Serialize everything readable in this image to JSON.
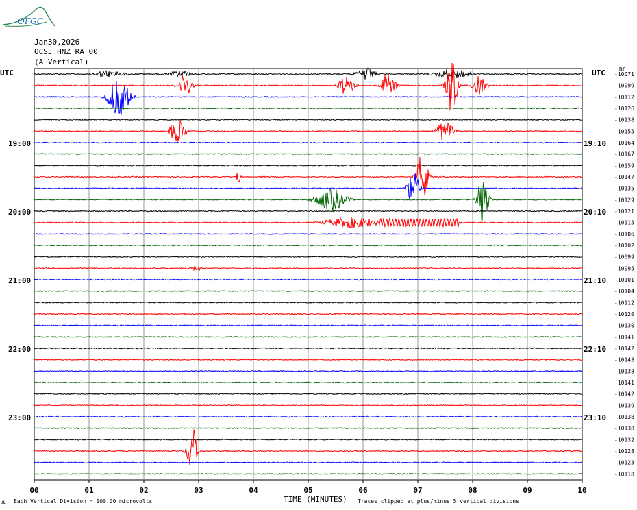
{
  "logo": {
    "text": "OFGC",
    "icon": "mountain-swoosh-logo"
  },
  "header": {
    "date": "Jan30,2026",
    "station": "OCSJ HNZ RA 00",
    "component": "(A Vertical)"
  },
  "left_axis": {
    "unit": "UTC",
    "hour_labels": [
      "19:00",
      "20:00",
      "21:00",
      "22:00",
      "23:00"
    ]
  },
  "right_axis": {
    "unit": "UTC",
    "dc_label": "DC",
    "hour_labels": [
      "19:10",
      "20:10",
      "21:10",
      "22:10",
      "23:10"
    ]
  },
  "footer": {
    "scale_note": "Each Vertical Division =  100.00 microvolts",
    "clip_note": "Traces clipped at plus/minus 5 vertical divisions",
    "corner_mark": "ᴊʟ"
  },
  "colors": {
    "black": "#000000",
    "red": "#ff0000",
    "blue": "#0000ff",
    "green": "#006400",
    "grid": "#808080"
  },
  "chart_data": {
    "type": "line",
    "xlabel": "TIME (MINUTES)",
    "xlim": [
      0,
      10
    ],
    "x_ticks": [
      "00",
      "01",
      "02",
      "03",
      "04",
      "05",
      "06",
      "07",
      "08",
      "09",
      "10"
    ],
    "trace_count": 36,
    "trace_colors": [
      "black",
      "red",
      "blue",
      "green"
    ],
    "dc_offsets": [
      "-10071",
      "-10099",
      "-10112",
      "-10126",
      "-10138",
      "-10155",
      "-10164",
      "-10167",
      "-10159",
      "-10147",
      "-10135",
      "-10129",
      "-10121",
      "-10115",
      "-10106",
      "-10102",
      "-10099",
      "-10095",
      "-10101",
      "-10104",
      "-10112",
      "-10120",
      "-10130",
      "-10141",
      "-10142",
      "-10143",
      "-10138",
      "-10141",
      "-10142",
      "-10139",
      "-10138",
      "-10138",
      "-10132",
      "-10128",
      "-10123",
      "-10118"
    ],
    "events": [
      {
        "trace": 0,
        "minute": 1.35,
        "amp": 0.35,
        "dur": 0.25
      },
      {
        "trace": 0,
        "minute": 2.65,
        "amp": 0.3,
        "dur": 0.2
      },
      {
        "trace": 0,
        "minute": 6.05,
        "amp": 0.6,
        "dur": 0.15
      },
      {
        "trace": 0,
        "minute": 7.65,
        "amp": 0.5,
        "dur": 0.3
      },
      {
        "trace": 1,
        "minute": 2.75,
        "amp": 1.0,
        "dur": 0.12
      },
      {
        "trace": 1,
        "minute": 5.7,
        "amp": 1.2,
        "dur": 0.12
      },
      {
        "trace": 1,
        "minute": 6.47,
        "amp": 1.3,
        "dur": 0.12
      },
      {
        "trace": 1,
        "minute": 7.62,
        "amp": 2.5,
        "dur": 0.1
      },
      {
        "trace": 1,
        "minute": 8.12,
        "amp": 0.8,
        "dur": 0.12
      },
      {
        "trace": 2,
        "minute": 1.55,
        "amp": 1.8,
        "dur": 0.18
      },
      {
        "trace": 5,
        "minute": 2.62,
        "amp": 1.0,
        "dur": 0.15
      },
      {
        "trace": 5,
        "minute": 7.5,
        "amp": 0.9,
        "dur": 0.15
      },
      {
        "trace": 9,
        "minute": 3.72,
        "amp": 0.7,
        "dur": 0.04
      },
      {
        "trace": 9,
        "minute": 7.08,
        "amp": 2.2,
        "dur": 0.1
      },
      {
        "trace": 10,
        "minute": 6.92,
        "amp": 1.6,
        "dur": 0.1
      },
      {
        "trace": 11,
        "minute": 5.42,
        "amp": 1.0,
        "dur": 0.25
      },
      {
        "trace": 11,
        "minute": 8.18,
        "amp": 2.0,
        "dur": 0.1
      },
      {
        "trace": 13,
        "minute": 5.8,
        "amp": 0.5,
        "dur": 0.45
      },
      {
        "trace": 17,
        "minute": 2.95,
        "amp": 0.3,
        "dur": 0.1
      },
      {
        "trace": 33,
        "minute": 2.88,
        "amp": 2.5,
        "dur": 0.08
      }
    ],
    "wave_trains": [
      {
        "trace": 13,
        "from_minute": 6.3,
        "to_minute": 7.75,
        "amp": 0.35,
        "cycles_per_minute": 18
      }
    ]
  }
}
